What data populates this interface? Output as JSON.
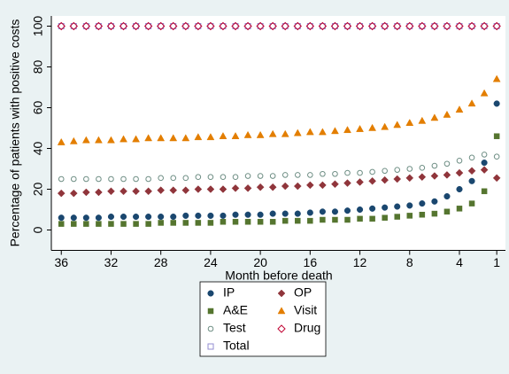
{
  "chart_data": {
    "type": "scatter",
    "xlabel": "Month before death",
    "ylabel": "Percentage of patients with positive costs",
    "x": [
      36,
      35,
      34,
      33,
      32,
      31,
      30,
      29,
      28,
      27,
      26,
      25,
      24,
      23,
      22,
      21,
      20,
      19,
      18,
      17,
      16,
      15,
      14,
      13,
      12,
      11,
      10,
      9,
      8,
      7,
      6,
      5,
      4,
      3,
      2,
      1
    ],
    "xlim": [
      36.8,
      0.3
    ],
    "xticks": [
      36,
      32,
      28,
      24,
      20,
      16,
      12,
      8,
      4,
      1
    ],
    "ylim": [
      -10,
      105
    ],
    "yticks": [
      0,
      20,
      40,
      60,
      80,
      100
    ],
    "grid": false,
    "legend": "bottom",
    "series": [
      {
        "name": "IP",
        "color": "#1a476f",
        "marker": "circle",
        "filled": true,
        "values": [
          6,
          6,
          6,
          6,
          6.5,
          6.5,
          6.5,
          6.5,
          6.5,
          6.5,
          7,
          7,
          7,
          7,
          7.5,
          7.5,
          7.5,
          8,
          8,
          8,
          8.5,
          9,
          9,
          9.5,
          10,
          10.5,
          11,
          11.5,
          12,
          13,
          14,
          16.5,
          20,
          24,
          33,
          62
        ]
      },
      {
        "name": "OP",
        "color": "#90353b",
        "marker": "diamond",
        "filled": true,
        "values": [
          18,
          18,
          18.5,
          18.5,
          19,
          19,
          19,
          19,
          19.5,
          19.5,
          19.5,
          20,
          20,
          20,
          20.5,
          20.5,
          21,
          21,
          21.5,
          21.5,
          22,
          22,
          22.5,
          23,
          23.5,
          24,
          24.5,
          25,
          25.5,
          26,
          26.5,
          27,
          28,
          29,
          29.5,
          25.5
        ]
      },
      {
        "name": "A&E",
        "color": "#55752f",
        "marker": "square",
        "filled": true,
        "values": [
          3,
          3,
          3,
          3,
          3,
          3,
          3,
          3,
          3.5,
          3.5,
          3.5,
          3.5,
          3.5,
          4,
          4,
          4,
          4,
          4,
          4.5,
          4.5,
          4.5,
          5,
          5,
          5,
          5.5,
          5.5,
          6,
          6.5,
          7,
          7.5,
          8,
          9,
          10.5,
          13,
          19,
          46
        ]
      },
      {
        "name": "Visit",
        "color": "#e37e00",
        "marker": "triangle",
        "filled": true,
        "values": [
          43,
          43.5,
          44,
          44,
          44,
          44.5,
          44.5,
          45,
          45,
          45,
          45,
          45.5,
          45.5,
          46,
          46,
          46.5,
          46.5,
          47,
          47,
          47.5,
          48,
          48,
          48.5,
          49,
          49.5,
          50,
          50.5,
          51.5,
          52.5,
          53.5,
          55,
          56.5,
          59,
          62,
          67,
          74
        ]
      },
      {
        "name": "Test",
        "color": "#6e8e84",
        "marker": "circle",
        "filled": false,
        "values": [
          25,
          25,
          25,
          25,
          25,
          25,
          25,
          25,
          25.5,
          25.5,
          25.5,
          26,
          26,
          26,
          26,
          26.5,
          26.5,
          26.5,
          27,
          27,
          27,
          27.5,
          27.5,
          28,
          28,
          28.5,
          29,
          29.5,
          30,
          30.5,
          31.5,
          32.5,
          34,
          35.5,
          37,
          36
        ]
      },
      {
        "name": "Drug",
        "color": "#c10534",
        "marker": "diamond",
        "filled": false,
        "values": [
          100,
          100,
          100,
          100,
          100,
          100,
          100,
          100,
          100,
          100,
          100,
          100,
          100,
          100,
          100,
          100,
          100,
          100,
          100,
          100,
          100,
          100,
          100,
          100,
          100,
          100,
          100,
          100,
          100,
          100,
          100,
          100,
          100,
          100,
          100,
          100
        ]
      },
      {
        "name": "Total",
        "color": "#938dd2",
        "marker": "square",
        "filled": false,
        "values": [
          100,
          100,
          100,
          100,
          100,
          100,
          100,
          100,
          100,
          100,
          100,
          100,
          100,
          100,
          100,
          100,
          100,
          100,
          100,
          100,
          100,
          100,
          100,
          100,
          100,
          100,
          100,
          100,
          100,
          100,
          100,
          100,
          100,
          100,
          100,
          100
        ]
      }
    ]
  }
}
